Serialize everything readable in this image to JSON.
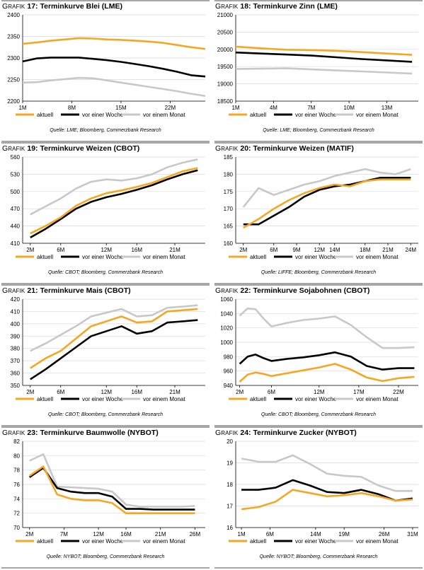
{
  "legend": [
    "aktuell",
    "vor einer Woche",
    "vor einem Monat"
  ],
  "colors": {
    "aktuell": "#f5a623",
    "vor_einer_woche": "#000000",
    "vor_einem_monat": "#c8c8c8"
  },
  "panels": [
    {
      "prefix": "Grafik",
      "num": "17:",
      "title": "Terminkurve Blei (LME)",
      "source": "Quelle: LME; Bloomberg, Commerzbank Research"
    },
    {
      "prefix": "Grafik",
      "num": "18:",
      "title": "Terminkurve Zinn (LME)",
      "source": "Quelle: LME; Bloomberg, Commerzbank Research"
    },
    {
      "prefix": "Grafik",
      "num": "19:",
      "title": "Terminkurve Weizen (CBOT)",
      "source": "Quelle: CBOT; Bloomberg, Commerzbank Research"
    },
    {
      "prefix": "Grafik",
      "num": "20:",
      "title": "Terminkurve Weizen (MATIF)",
      "source": "Quelle: LIFFE; Bloomberg, Commerzbank Research"
    },
    {
      "prefix": "Grafik",
      "num": "21:",
      "title": "Terminkurve Mais (CBOT)",
      "source": "Quelle: CBOT; Bloomberg, Commerzbank Research"
    },
    {
      "prefix": "Grafik",
      "num": "22:",
      "title": "Terminkurve Sojabohnen (CBOT)",
      "source": "Quelle: CBOT; Bloomberg, Commerzbank Research"
    },
    {
      "prefix": "Grafik",
      "num": "23:",
      "title": "Terminkurve Baumwolle (NYBOT)",
      "source": "Quelle: NYBOT; Bloomberg, Commerzbank Research"
    },
    {
      "prefix": "Grafik",
      "num": "24:",
      "title": "Terminkurve Zucker (NYBOT)",
      "source": "Quelle: NYBOT; Bloomberg, Commerzbank Research"
    }
  ],
  "chart_data": [
    {
      "type": "line",
      "title": "Terminkurve Blei (LME)",
      "x": [
        1,
        3,
        5,
        7,
        9,
        11,
        13,
        15,
        17,
        19,
        21,
        23,
        25,
        27
      ],
      "xticks": [
        {
          "x": 1,
          "label": "1M"
        },
        {
          "x": 8,
          "label": "8M"
        },
        {
          "x": 15,
          "label": "15M"
        },
        {
          "x": 22,
          "label": "22M"
        }
      ],
      "xlim": [
        1,
        27
      ],
      "ylim": [
        2200,
        2400
      ],
      "yticks": [
        2200,
        2250,
        2300,
        2350,
        2400
      ],
      "series": [
        {
          "name": "aktuell",
          "values": [
            2333,
            2336,
            2340,
            2343,
            2346,
            2345,
            2343,
            2342,
            2340,
            2338,
            2335,
            2330,
            2325,
            2321
          ]
        },
        {
          "name": "vor einer Woche",
          "values": [
            2292,
            2299,
            2301,
            2301,
            2301,
            2298,
            2295,
            2291,
            2286,
            2281,
            2275,
            2268,
            2260,
            2257
          ]
        },
        {
          "name": "vor einem Monat",
          "values": [
            2243,
            2244,
            2248,
            2251,
            2254,
            2253,
            2248,
            2243,
            2238,
            2233,
            2228,
            2223,
            2217,
            2212
          ]
        }
      ]
    },
    {
      "type": "line",
      "title": "Terminkurve Zinn (LME)",
      "x": [
        1,
        3,
        5,
        7,
        9,
        11,
        13,
        15
      ],
      "xticks": [
        {
          "x": 1,
          "label": "1M"
        },
        {
          "x": 4,
          "label": "4M"
        },
        {
          "x": 7,
          "label": "7M"
        },
        {
          "x": 10,
          "label": "10M"
        },
        {
          "x": 13,
          "label": "13M"
        }
      ],
      "xlim": [
        1,
        15.5
      ],
      "ylim": [
        18500,
        21000
      ],
      "yticks": [
        18500,
        19000,
        19500,
        20000,
        20500,
        21000
      ],
      "series": [
        {
          "name": "aktuell",
          "values": [
            20080,
            20030,
            19990,
            19980,
            19960,
            19920,
            19880,
            19840
          ]
        },
        {
          "name": "vor einer Woche",
          "values": [
            19910,
            19880,
            19850,
            19820,
            19770,
            19720,
            19680,
            19640
          ]
        },
        {
          "name": "vor einem Monat",
          "values": [
            19430,
            19440,
            19450,
            19420,
            19390,
            19360,
            19330,
            19300
          ]
        }
      ]
    },
    {
      "type": "line",
      "title": "Terminkurve Weizen (CBOT)",
      "x": [
        2,
        4,
        6,
        8,
        10,
        12,
        14,
        16,
        18,
        20,
        22,
        24
      ],
      "xticks": [
        {
          "x": 2,
          "label": "2M"
        },
        {
          "x": 6,
          "label": "6M"
        },
        {
          "x": 12,
          "label": "12M"
        },
        {
          "x": 16,
          "label": "16M"
        },
        {
          "x": 21,
          "label": "21M"
        }
      ],
      "xlim": [
        1,
        25
      ],
      "ylim": [
        410,
        560
      ],
      "yticks": [
        410,
        440,
        470,
        500,
        530,
        560
      ],
      "series": [
        {
          "name": "aktuell",
          "values": [
            427,
            440,
            455,
            475,
            488,
            497,
            502,
            508,
            515,
            525,
            535,
            541
          ]
        },
        {
          "name": "vor einer Woche",
          "values": [
            420,
            435,
            452,
            470,
            482,
            490,
            496,
            503,
            511,
            521,
            530,
            537
          ]
        },
        {
          "name": "vor einem Monat",
          "values": [
            460,
            474,
            488,
            505,
            517,
            521,
            519,
            523,
            530,
            542,
            550,
            556
          ]
        }
      ]
    },
    {
      "type": "line",
      "title": "Terminkurve Weizen (MATIF)",
      "x": [
        2,
        4,
        6,
        8,
        10,
        12,
        14,
        16,
        18,
        20,
        22,
        24
      ],
      "xticks": [
        {
          "x": 2,
          "label": "2M"
        },
        {
          "x": 6,
          "label": "6M"
        },
        {
          "x": 9,
          "label": "9M"
        },
        {
          "x": 12,
          "label": "12M"
        },
        {
          "x": 14,
          "label": "14M"
        },
        {
          "x": 18,
          "label": "18M"
        },
        {
          "x": 21,
          "label": "21M"
        },
        {
          "x": 24,
          "label": "24M"
        }
      ],
      "xlim": [
        1,
        25
      ],
      "ylim": [
        160,
        185
      ],
      "yticks": [
        160,
        165,
        170,
        175,
        180,
        185
      ],
      "series": [
        {
          "name": "aktuell",
          "values": [
            164.5,
            167,
            170,
            172.5,
            174.5,
            176,
            177,
            176.5,
            178,
            178.5,
            178.5,
            178.5
          ]
        },
        {
          "name": "vor einer Woche",
          "values": [
            165.5,
            165.5,
            168,
            170.5,
            173.5,
            175.5,
            176.5,
            177,
            178,
            179,
            179,
            179
          ]
        },
        {
          "name": "vor einem Monat",
          "values": [
            170.5,
            176,
            174,
            175.5,
            177,
            178,
            179.5,
            180.5,
            181.5,
            180.5,
            180,
            181.5
          ]
        }
      ]
    },
    {
      "type": "line",
      "title": "Terminkurve Mais (CBOT)",
      "x": [
        2,
        4,
        6,
        8,
        10,
        12,
        14,
        16,
        18,
        20,
        22,
        24
      ],
      "xticks": [
        {
          "x": 2,
          "label": "2M"
        },
        {
          "x": 6,
          "label": "6M"
        },
        {
          "x": 12,
          "label": "12M"
        },
        {
          "x": 16,
          "label": "16M"
        },
        {
          "x": 21,
          "label": "21M"
        }
      ],
      "xlim": [
        1,
        25
      ],
      "ylim": [
        350,
        420
      ],
      "yticks": [
        350,
        360,
        370,
        380,
        390,
        400,
        410,
        420
      ],
      "series": [
        {
          "name": "aktuell",
          "values": [
            364,
            372,
            378,
            388,
            398,
            402,
            406,
            401,
            402,
            410,
            411,
            412
          ]
        },
        {
          "name": "vor einer Woche",
          "values": [
            355,
            363,
            372,
            381,
            390,
            394,
            398,
            392,
            394,
            401,
            402,
            403
          ]
        },
        {
          "name": "vor einem Monat",
          "values": [
            378,
            384,
            391,
            398,
            406,
            409,
            412,
            406,
            407,
            413,
            414,
            415
          ]
        }
      ]
    },
    {
      "type": "line",
      "title": "Terminkurve Sojabohnen (CBOT)",
      "x": [
        2,
        3,
        4,
        5,
        6,
        8,
        10,
        12,
        14,
        16,
        18,
        20,
        22,
        24
      ],
      "xticks": [
        {
          "x": 2,
          "label": "2M"
        },
        {
          "x": 6,
          "label": "6M"
        },
        {
          "x": 12,
          "label": "12M"
        },
        {
          "x": 17,
          "label": "17M"
        },
        {
          "x": 22,
          "label": "22M"
        }
      ],
      "xlim": [
        1.5,
        24.5
      ],
      "ylim": [
        940,
        1060
      ],
      "yticks": [
        940,
        960,
        980,
        1000,
        1020,
        1040,
        1060
      ],
      "series": [
        {
          "name": "aktuell",
          "values": [
            945,
            955,
            958,
            956,
            953,
            957,
            961,
            965,
            970,
            962,
            951,
            946,
            950,
            952
          ]
        },
        {
          "name": "vor einer Woche",
          "values": [
            970,
            980,
            983,
            978,
            974,
            977,
            979,
            982,
            986,
            980,
            967,
            962,
            964,
            964
          ]
        },
        {
          "name": "vor einem Monat",
          "values": [
            1037,
            1047,
            1046,
            1033,
            1022,
            1027,
            1031,
            1033,
            1036,
            1024,
            1007,
            992,
            992,
            993
          ]
        }
      ]
    },
    {
      "type": "line",
      "title": "Terminkurve Baumwolle (NYBOT)",
      "x": [
        2,
        4,
        6,
        8,
        10,
        12,
        14,
        16,
        18,
        20,
        22,
        24,
        26
      ],
      "xticks": [
        {
          "x": 2,
          "label": "2M"
        },
        {
          "x": 7,
          "label": "7M"
        },
        {
          "x": 12,
          "label": "12M"
        },
        {
          "x": 16,
          "label": "16M"
        },
        {
          "x": 21,
          "label": "21M"
        },
        {
          "x": 26,
          "label": "26M"
        }
      ],
      "xlim": [
        1,
        27.5
      ],
      "ylim": [
        70,
        82
      ],
      "yticks": [
        70,
        72,
        74,
        76,
        78,
        80,
        82
      ],
      "series": [
        {
          "name": "aktuell",
          "values": [
            77.2,
            78.5,
            74.6,
            74.0,
            73.8,
            73.8,
            73.4,
            72.0,
            72.0,
            72.0,
            72.0,
            72.0,
            72.0
          ]
        },
        {
          "name": "vor einer Woche",
          "values": [
            77.0,
            78.3,
            75.5,
            75.0,
            74.8,
            74.8,
            74.3,
            72.6,
            72.6,
            72.5,
            72.5,
            72.5,
            72.5
          ]
        },
        {
          "name": "vor einem Monat",
          "values": [
            79.3,
            80.2,
            75.7,
            75.6,
            75.5,
            75.4,
            75.0,
            73.2,
            72.9,
            72.9,
            72.9,
            72.9,
            73.0
          ]
        }
      ]
    },
    {
      "type": "line",
      "title": "Terminkurve Zucker (NYBOT)",
      "x": [
        1,
        4,
        7,
        10,
        13,
        16,
        19,
        22,
        25,
        28,
        31
      ],
      "xticks": [
        {
          "x": 1,
          "label": "1M"
        },
        {
          "x": 6,
          "label": "6M"
        },
        {
          "x": 14,
          "label": "14M"
        },
        {
          "x": 19,
          "label": "19M"
        },
        {
          "x": 26,
          "label": "26M"
        },
        {
          "x": 31,
          "label": "31M"
        }
      ],
      "xlim": [
        0,
        32
      ],
      "ylim": [
        16,
        20
      ],
      "yticks": [
        16,
        17,
        18,
        19,
        20
      ],
      "series": [
        {
          "name": "aktuell",
          "values": [
            16.85,
            16.95,
            17.2,
            17.75,
            17.6,
            17.45,
            17.5,
            17.6,
            17.45,
            17.25,
            17.3
          ]
        },
        {
          "name": "vor einer Woche",
          "values": [
            17.75,
            17.75,
            17.85,
            18.2,
            17.95,
            17.65,
            17.6,
            17.75,
            17.55,
            17.25,
            17.35
          ]
        },
        {
          "name": "vor einem Monat",
          "values": [
            19.2,
            19.05,
            19.05,
            19.35,
            18.95,
            18.5,
            18.4,
            18.35,
            17.95,
            17.7,
            17.7
          ]
        }
      ]
    }
  ]
}
